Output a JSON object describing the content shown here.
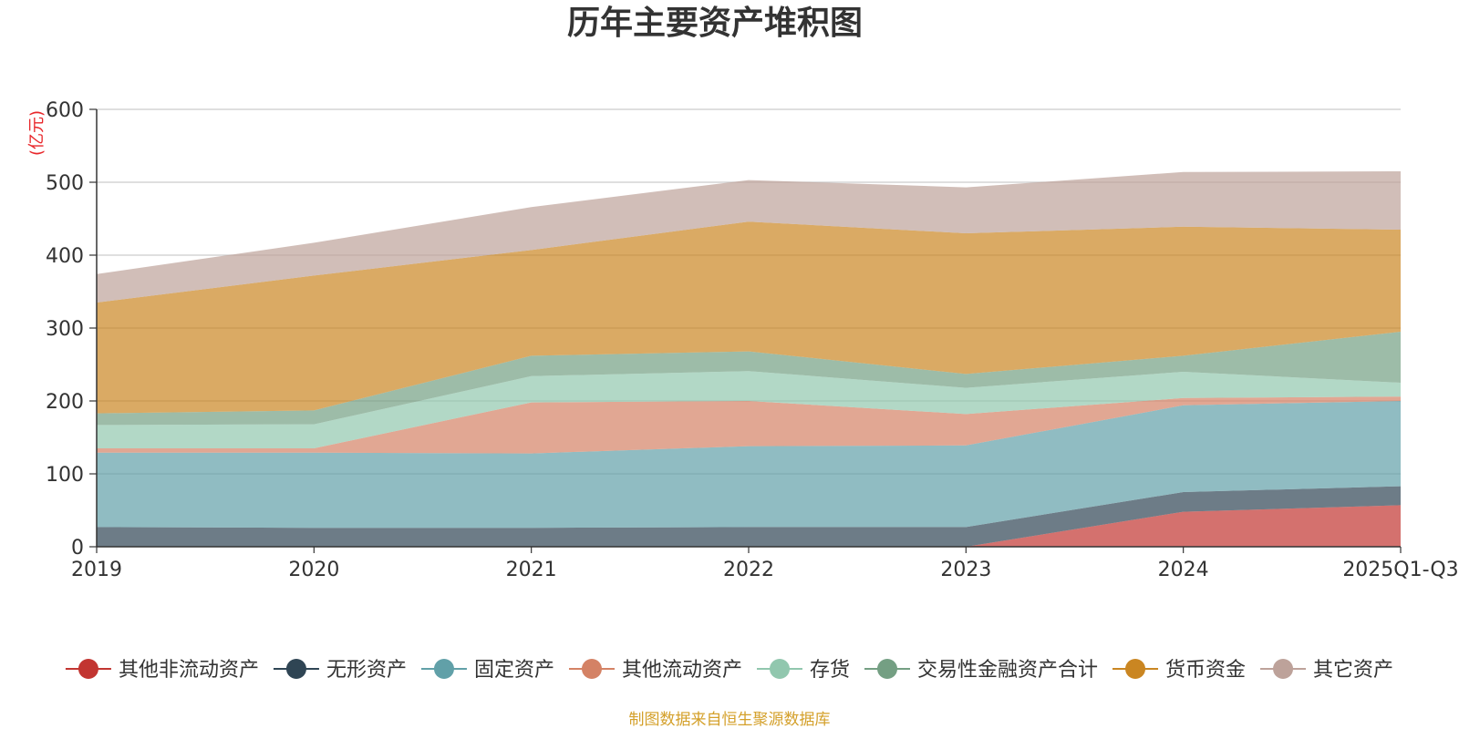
{
  "chart_data": {
    "type": "area",
    "stacked": true,
    "title": "历年主要资产堆积图",
    "unit_label": "(亿元)",
    "categories": [
      "2019",
      "2020",
      "2021",
      "2022",
      "2023",
      "2024",
      "2025Q1-Q3"
    ],
    "ylim": [
      0,
      600
    ],
    "yticks": [
      "0",
      "100",
      "200",
      "300",
      "400",
      "500",
      "600"
    ],
    "grid": true,
    "legend_position": "bottom",
    "series": [
      {
        "name": "其他非流动资产",
        "color": "#c23531",
        "values": [
          0,
          0,
          0,
          0,
          0,
          48,
          57
        ]
      },
      {
        "name": "无形资产",
        "color": "#2f4554",
        "values": [
          27,
          26,
          26,
          27,
          27,
          27,
          26
        ]
      },
      {
        "name": "固定资产",
        "color": "#61a0a8",
        "values": [
          102,
          103,
          102,
          111,
          112,
          119,
          117
        ]
      },
      {
        "name": "其他流动资产",
        "color": "#d48265",
        "values": [
          6,
          6,
          70,
          62,
          43,
          10,
          6
        ]
      },
      {
        "name": "存货",
        "color": "#91c7ae",
        "values": [
          32,
          33,
          36,
          41,
          36,
          36,
          19
        ]
      },
      {
        "name": "交易性金融资产合计",
        "color": "#749f83",
        "values": [
          16,
          19,
          28,
          27,
          19,
          22,
          70
        ]
      },
      {
        "name": "货币资金",
        "color": "#ca8622",
        "values": [
          152,
          185,
          145,
          178,
          193,
          177,
          140
        ]
      },
      {
        "name": "其它资产",
        "color": "#bda29a",
        "values": [
          39,
          45,
          59,
          57,
          63,
          75,
          80
        ]
      }
    ],
    "source_note": "制图数据来自恒生聚源数据库"
  }
}
